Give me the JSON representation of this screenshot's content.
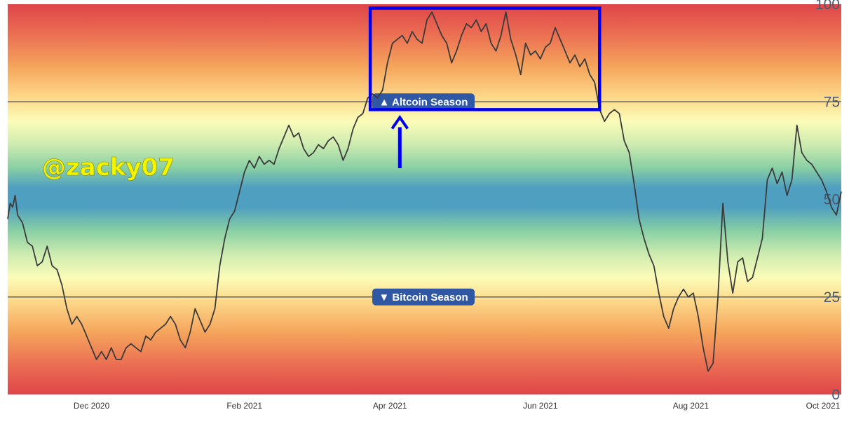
{
  "watermark": "@zacky07",
  "chart_data": {
    "type": "line",
    "title": "",
    "xlabel": "",
    "ylabel": "",
    "ylim": [
      0,
      100
    ],
    "y_ticks": [
      100,
      75,
      50,
      25,
      0
    ],
    "x_ticks": [
      "Dec 2020",
      "Feb 2021",
      "Apr 2021",
      "Jun 2021",
      "Aug 2021",
      "Oct 2021"
    ],
    "grid": false,
    "background": "red-yellow-green-blue gradient bands",
    "threshold_lines": [
      {
        "value": 75,
        "label": "Altcoin Season",
        "marker": "▲"
      },
      {
        "value": 25,
        "label": "Bitcoin Season",
        "marker": "▼"
      }
    ],
    "highlight_box": {
      "x_start": "2021-03-24",
      "x_end": "2021-06-25",
      "y_start": 73,
      "y_end": 99,
      "color": "#0000ee"
    },
    "annotation_arrow": {
      "x": "2021-04-05",
      "y_from": 58,
      "y_to": 71,
      "color": "#0000ee",
      "direction": "up"
    },
    "series": [
      {
        "values": [
          [
            "2020-10-28",
            45
          ],
          [
            "2020-10-29",
            49
          ],
          [
            "2020-10-30",
            48
          ],
          [
            "2020-10-31",
            51
          ],
          [
            "2020-11-01",
            46
          ],
          [
            "2020-11-03",
            44
          ],
          [
            "2020-11-05",
            39
          ],
          [
            "2020-11-07",
            38
          ],
          [
            "2020-11-09",
            33
          ],
          [
            "2020-11-11",
            34
          ],
          [
            "2020-11-13",
            38
          ],
          [
            "2020-11-15",
            33
          ],
          [
            "2020-11-17",
            32
          ],
          [
            "2020-11-19",
            28
          ],
          [
            "2020-11-21",
            22
          ],
          [
            "2020-11-23",
            18
          ],
          [
            "2020-11-25",
            20
          ],
          [
            "2020-11-27",
            18
          ],
          [
            "2020-11-29",
            15
          ],
          [
            "2020-12-01",
            12
          ],
          [
            "2020-12-03",
            9
          ],
          [
            "2020-12-05",
            11
          ],
          [
            "2020-12-07",
            9
          ],
          [
            "2020-12-09",
            12
          ],
          [
            "2020-12-11",
            9
          ],
          [
            "2020-12-13",
            9
          ],
          [
            "2020-12-15",
            12
          ],
          [
            "2020-12-17",
            13
          ],
          [
            "2020-12-19",
            12
          ],
          [
            "2020-12-21",
            11
          ],
          [
            "2020-12-23",
            15
          ],
          [
            "2020-12-25",
            14
          ],
          [
            "2020-12-27",
            16
          ],
          [
            "2020-12-29",
            17
          ],
          [
            "2020-12-31",
            18
          ],
          [
            "2021-01-02",
            20
          ],
          [
            "2021-01-04",
            18
          ],
          [
            "2021-01-06",
            14
          ],
          [
            "2021-01-08",
            12
          ],
          [
            "2021-01-10",
            16
          ],
          [
            "2021-01-12",
            22
          ],
          [
            "2021-01-14",
            19
          ],
          [
            "2021-01-16",
            16
          ],
          [
            "2021-01-18",
            18
          ],
          [
            "2021-01-20",
            22
          ],
          [
            "2021-01-22",
            33
          ],
          [
            "2021-01-24",
            40
          ],
          [
            "2021-01-26",
            45
          ],
          [
            "2021-01-28",
            47
          ],
          [
            "2021-01-30",
            52
          ],
          [
            "2021-02-01",
            57
          ],
          [
            "2021-02-03",
            60
          ],
          [
            "2021-02-05",
            58
          ],
          [
            "2021-02-07",
            61
          ],
          [
            "2021-02-09",
            59
          ],
          [
            "2021-02-11",
            60
          ],
          [
            "2021-02-13",
            59
          ],
          [
            "2021-02-15",
            63
          ],
          [
            "2021-02-17",
            66
          ],
          [
            "2021-02-19",
            69
          ],
          [
            "2021-02-21",
            66
          ],
          [
            "2021-02-23",
            67
          ],
          [
            "2021-02-25",
            63
          ],
          [
            "2021-02-27",
            61
          ],
          [
            "2021-03-01",
            62
          ],
          [
            "2021-03-03",
            64
          ],
          [
            "2021-03-05",
            63
          ],
          [
            "2021-03-07",
            65
          ],
          [
            "2021-03-09",
            66
          ],
          [
            "2021-03-11",
            64
          ],
          [
            "2021-03-13",
            60
          ],
          [
            "2021-03-15",
            63
          ],
          [
            "2021-03-17",
            68
          ],
          [
            "2021-03-19",
            71
          ],
          [
            "2021-03-21",
            72
          ],
          [
            "2021-03-23",
            76
          ],
          [
            "2021-03-25",
            77
          ],
          [
            "2021-03-27",
            76
          ],
          [
            "2021-03-29",
            78
          ],
          [
            "2021-03-31",
            85
          ],
          [
            "2021-04-02",
            90
          ],
          [
            "2021-04-04",
            91
          ],
          [
            "2021-04-06",
            92
          ],
          [
            "2021-04-08",
            90
          ],
          [
            "2021-04-10",
            93
          ],
          [
            "2021-04-12",
            91
          ],
          [
            "2021-04-14",
            90
          ],
          [
            "2021-04-16",
            96
          ],
          [
            "2021-04-18",
            98
          ],
          [
            "2021-04-20",
            95
          ],
          [
            "2021-04-22",
            92
          ],
          [
            "2021-04-24",
            90
          ],
          [
            "2021-04-26",
            85
          ],
          [
            "2021-04-28",
            88
          ],
          [
            "2021-04-30",
            92
          ],
          [
            "2021-05-02",
            95
          ],
          [
            "2021-05-04",
            94
          ],
          [
            "2021-05-06",
            96
          ],
          [
            "2021-05-08",
            93
          ],
          [
            "2021-05-10",
            95
          ],
          [
            "2021-05-12",
            90
          ],
          [
            "2021-05-14",
            88
          ],
          [
            "2021-05-16",
            92
          ],
          [
            "2021-05-18",
            98
          ],
          [
            "2021-05-20",
            91
          ],
          [
            "2021-05-22",
            87
          ],
          [
            "2021-05-24",
            82
          ],
          [
            "2021-05-26",
            90
          ],
          [
            "2021-05-28",
            87
          ],
          [
            "2021-05-30",
            88
          ],
          [
            "2021-06-01",
            86
          ],
          [
            "2021-06-03",
            89
          ],
          [
            "2021-06-05",
            90
          ],
          [
            "2021-06-07",
            94
          ],
          [
            "2021-06-09",
            91
          ],
          [
            "2021-06-11",
            88
          ],
          [
            "2021-06-13",
            85
          ],
          [
            "2021-06-15",
            87
          ],
          [
            "2021-06-17",
            84
          ],
          [
            "2021-06-19",
            86
          ],
          [
            "2021-06-21",
            82
          ],
          [
            "2021-06-23",
            80
          ],
          [
            "2021-06-25",
            73
          ],
          [
            "2021-06-27",
            70
          ],
          [
            "2021-06-29",
            72
          ],
          [
            "2021-07-01",
            73
          ],
          [
            "2021-07-03",
            72
          ],
          [
            "2021-07-05",
            65
          ],
          [
            "2021-07-07",
            62
          ],
          [
            "2021-07-09",
            54
          ],
          [
            "2021-07-11",
            45
          ],
          [
            "2021-07-13",
            40
          ],
          [
            "2021-07-15",
            36
          ],
          [
            "2021-07-17",
            33
          ],
          [
            "2021-07-19",
            26
          ],
          [
            "2021-07-21",
            20
          ],
          [
            "2021-07-23",
            17
          ],
          [
            "2021-07-25",
            22
          ],
          [
            "2021-07-27",
            25
          ],
          [
            "2021-07-29",
            27
          ],
          [
            "2021-07-31",
            25
          ],
          [
            "2021-08-02",
            26
          ],
          [
            "2021-08-04",
            20
          ],
          [
            "2021-08-06",
            12
          ],
          [
            "2021-08-08",
            6
          ],
          [
            "2021-08-10",
            8
          ],
          [
            "2021-08-12",
            25
          ],
          [
            "2021-08-14",
            49
          ],
          [
            "2021-08-16",
            34
          ],
          [
            "2021-08-18",
            26
          ],
          [
            "2021-08-20",
            34
          ],
          [
            "2021-08-22",
            35
          ],
          [
            "2021-08-24",
            29
          ],
          [
            "2021-08-26",
            30
          ],
          [
            "2021-08-28",
            35
          ],
          [
            "2021-08-30",
            40
          ],
          [
            "2021-09-01",
            55
          ],
          [
            "2021-09-03",
            58
          ],
          [
            "2021-09-05",
            54
          ],
          [
            "2021-09-07",
            57
          ],
          [
            "2021-09-09",
            51
          ],
          [
            "2021-09-11",
            55
          ],
          [
            "2021-09-13",
            69
          ],
          [
            "2021-09-15",
            62
          ],
          [
            "2021-09-17",
            60
          ],
          [
            "2021-09-19",
            59
          ],
          [
            "2021-09-21",
            57
          ],
          [
            "2021-09-23",
            55
          ],
          [
            "2021-09-25",
            52
          ],
          [
            "2021-09-27",
            48
          ],
          [
            "2021-09-29",
            46
          ],
          [
            "2021-10-01",
            52
          ]
        ]
      }
    ]
  }
}
